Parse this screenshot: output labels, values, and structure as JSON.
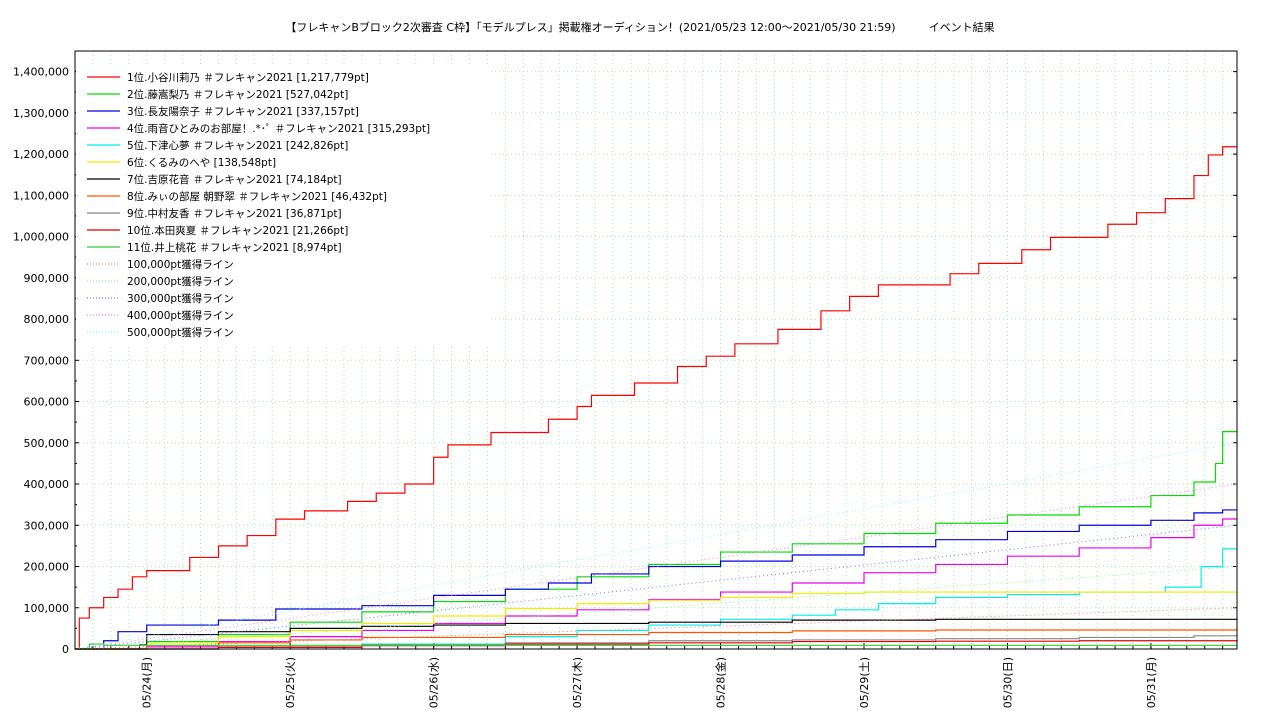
{
  "chart_data": {
    "type": "line",
    "title": "【フレキャンBブロック2次審査 C枠】「モデルプレス」掲載権オーディション！(2021/05/23 12:00〜2021/05/30 21:59)　　　イベント結果",
    "xlabel": "",
    "ylabel": "",
    "x_range": [
      "2021-05-23 12:00",
      "2021-05-31 00:00"
    ],
    "ylim": [
      0,
      1450000
    ],
    "y_ticks": [
      "0",
      "100,000",
      "200,000",
      "300,000",
      "400,000",
      "500,000",
      "600,000",
      "700,000",
      "800,000",
      "900,000",
      "1,000,000",
      "1,100,000",
      "1,200,000",
      "1,300,000",
      "1,400,000"
    ],
    "x_ticks": [
      "05/24(月)",
      "05/25(火)",
      "05/26(水)",
      "05/27(木)",
      "05/28(金)",
      "05/29(土)",
      "05/30(日)",
      "05/31(月)"
    ],
    "grid": true,
    "legend_position": "top-left",
    "series": [
      {
        "name": "1位.小谷川莉乃 ＃フレキャン2021 [1,217,779pt]",
        "color": "#ff0000",
        "style": "solid",
        "points": [
          [
            0,
            0
          ],
          [
            0.03,
            75000
          ],
          [
            0.1,
            100000
          ],
          [
            0.2,
            125000
          ],
          [
            0.3,
            145000
          ],
          [
            0.4,
            175000
          ],
          [
            0.5,
            190000
          ],
          [
            0.8,
            222000
          ],
          [
            1.0,
            250000
          ],
          [
            1.2,
            275000
          ],
          [
            1.4,
            315000
          ],
          [
            1.6,
            335000
          ],
          [
            1.9,
            358000
          ],
          [
            2.1,
            378000
          ],
          [
            2.3,
            400000
          ],
          [
            2.5,
            465000
          ],
          [
            2.6,
            495000
          ],
          [
            2.9,
            525000
          ],
          [
            3.3,
            557000
          ],
          [
            3.5,
            588000
          ],
          [
            3.6,
            615000
          ],
          [
            3.9,
            645000
          ],
          [
            4.2,
            685000
          ],
          [
            4.4,
            710000
          ],
          [
            4.6,
            740000
          ],
          [
            4.9,
            775000
          ],
          [
            5.2,
            820000
          ],
          [
            5.4,
            855000
          ],
          [
            5.6,
            883000
          ],
          [
            6.1,
            910000
          ],
          [
            6.3,
            935000
          ],
          [
            6.6,
            968000
          ],
          [
            6.8,
            998000
          ],
          [
            7.2,
            1030000
          ],
          [
            7.4,
            1058000
          ],
          [
            7.6,
            1092000
          ],
          [
            7.8,
            1148000
          ],
          [
            7.9,
            1198000
          ],
          [
            8.0,
            1217779
          ],
          [
            8.1,
            1217779
          ]
        ]
      },
      {
        "name": "2位.藤嵩梨乃 ＃フレキャン2021 [527,042pt]",
        "color": "#00dd00",
        "style": "solid",
        "points": [
          [
            0,
            0
          ],
          [
            0.5,
            18000
          ],
          [
            1.0,
            35000
          ],
          [
            1.5,
            65000
          ],
          [
            2.0,
            90000
          ],
          [
            2.5,
            115000
          ],
          [
            3.0,
            145000
          ],
          [
            3.5,
            175000
          ],
          [
            4.0,
            205000
          ],
          [
            4.5,
            235000
          ],
          [
            5.0,
            255000
          ],
          [
            5.5,
            280000
          ],
          [
            6.0,
            305000
          ],
          [
            6.5,
            325000
          ],
          [
            7.0,
            345000
          ],
          [
            7.5,
            372000
          ],
          [
            7.8,
            405000
          ],
          [
            7.95,
            450000
          ],
          [
            8.0,
            527042
          ],
          [
            8.1,
            527042
          ]
        ]
      },
      {
        "name": "3位.長友陽奈子 ＃フレキャン2021 [337,157pt]",
        "color": "#0000dd",
        "style": "solid",
        "points": [
          [
            0,
            0
          ],
          [
            0.2,
            20000
          ],
          [
            0.3,
            42000
          ],
          [
            0.5,
            58000
          ],
          [
            1.0,
            70000
          ],
          [
            1.4,
            97000
          ],
          [
            2.0,
            105000
          ],
          [
            2.5,
            130000
          ],
          [
            3.0,
            145000
          ],
          [
            3.3,
            160000
          ],
          [
            3.6,
            182000
          ],
          [
            4.0,
            200000
          ],
          [
            4.5,
            213000
          ],
          [
            5.0,
            228000
          ],
          [
            5.5,
            248000
          ],
          [
            6.0,
            265000
          ],
          [
            6.5,
            285000
          ],
          [
            7.0,
            300000
          ],
          [
            7.5,
            312000
          ],
          [
            7.8,
            330000
          ],
          [
            8.0,
            337157
          ],
          [
            8.1,
            337157
          ]
        ]
      },
      {
        "name": "4位.雨音ひとみのお部屋！.*･ﾟ ＃フレキャン2021 [315,293pt]",
        "color": "#ee00ee",
        "style": "solid",
        "points": [
          [
            0,
            0
          ],
          [
            0.5,
            5000
          ],
          [
            1.0,
            18000
          ],
          [
            1.5,
            30000
          ],
          [
            2.0,
            45000
          ],
          [
            2.5,
            62000
          ],
          [
            3.0,
            80000
          ],
          [
            3.5,
            95000
          ],
          [
            4.0,
            120000
          ],
          [
            4.5,
            138000
          ],
          [
            5.0,
            160000
          ],
          [
            5.5,
            185000
          ],
          [
            6.0,
            205000
          ],
          [
            6.5,
            225000
          ],
          [
            7.0,
            245000
          ],
          [
            7.5,
            270000
          ],
          [
            7.8,
            300000
          ],
          [
            8.0,
            315293
          ],
          [
            8.1,
            315293
          ]
        ]
      },
      {
        "name": "5位.下津心夢 ＃フレキャン2021 [242,826pt]",
        "color": "#00eeee",
        "style": "solid",
        "points": [
          [
            0,
            0
          ],
          [
            1.0,
            5000
          ],
          [
            2.0,
            12000
          ],
          [
            3.0,
            30000
          ],
          [
            3.5,
            45000
          ],
          [
            4.0,
            58000
          ],
          [
            4.5,
            72000
          ],
          [
            5.0,
            82000
          ],
          [
            5.3,
            95000
          ],
          [
            5.6,
            110000
          ],
          [
            6.0,
            125000
          ],
          [
            6.5,
            132000
          ],
          [
            7.0,
            138000
          ],
          [
            7.6,
            150000
          ],
          [
            7.85,
            200000
          ],
          [
            8.0,
            242826
          ],
          [
            8.1,
            242826
          ]
        ]
      },
      {
        "name": "6位.くるみのへや [138,548pt]",
        "color": "#eeee00",
        "style": "solid",
        "points": [
          [
            0,
            0
          ],
          [
            0.5,
            15000
          ],
          [
            1.0,
            30000
          ],
          [
            1.5,
            45000
          ],
          [
            2.0,
            62000
          ],
          [
            2.5,
            80000
          ],
          [
            3.0,
            98000
          ],
          [
            3.5,
            110000
          ],
          [
            4.0,
            118000
          ],
          [
            4.5,
            125000
          ],
          [
            5.0,
            135000
          ],
          [
            5.5,
            138000
          ],
          [
            8.1,
            138548
          ]
        ]
      },
      {
        "name": "7位.吉原花音 ＃フレキャン2021 [74,184pt]",
        "color": "#000000",
        "style": "solid",
        "points": [
          [
            0,
            0
          ],
          [
            0.45,
            10000
          ],
          [
            0.5,
            35000
          ],
          [
            1.0,
            42000
          ],
          [
            1.5,
            50000
          ],
          [
            2.0,
            55000
          ],
          [
            2.5,
            58000
          ],
          [
            3.0,
            62000
          ],
          [
            4.0,
            65000
          ],
          [
            5.0,
            70000
          ],
          [
            6.0,
            72000
          ],
          [
            8.1,
            74184
          ]
        ]
      },
      {
        "name": "8位.みぃの部屋 朝野翠 ＃フレキャン2021 [46,432pt]",
        "color": "#ff5500",
        "style": "solid",
        "points": [
          [
            0,
            0
          ],
          [
            0.5,
            8000
          ],
          [
            1.0,
            15000
          ],
          [
            1.5,
            22000
          ],
          [
            2.0,
            28000
          ],
          [
            3.0,
            35000
          ],
          [
            4.0,
            40000
          ],
          [
            5.0,
            44000
          ],
          [
            6.0,
            46000
          ],
          [
            8.1,
            46432
          ]
        ]
      },
      {
        "name": "9位.中村友香 ＃フレキャン2021 [36,871pt]",
        "color": "#888888",
        "style": "solid",
        "points": [
          [
            0,
            0
          ],
          [
            1.0,
            5000
          ],
          [
            2.0,
            10000
          ],
          [
            3.0,
            15000
          ],
          [
            4.0,
            20000
          ],
          [
            5.0,
            22000
          ],
          [
            6.0,
            25000
          ],
          [
            7.0,
            28000
          ],
          [
            7.8,
            32000
          ],
          [
            8.1,
            36871
          ]
        ]
      },
      {
        "name": "10位.本田爽夏 ＃フレキャン2021 [21,266pt]",
        "color": "#dd0000",
        "style": "solid",
        "points": [
          [
            0,
            0
          ],
          [
            1.0,
            4000
          ],
          [
            2.0,
            8000
          ],
          [
            3.0,
            12000
          ],
          [
            4.0,
            15000
          ],
          [
            5.0,
            18000
          ],
          [
            6.0,
            19000
          ],
          [
            7.0,
            20000
          ],
          [
            8.1,
            21266
          ]
        ]
      },
      {
        "name": "11位.井上桃花 ＃フレキャン2021 [8,974pt]",
        "color": "#33cc33",
        "style": "solid",
        "points": [
          [
            0,
            0
          ],
          [
            0.1,
            12000
          ],
          [
            0.2,
            8974
          ],
          [
            8.1,
            8974
          ]
        ]
      },
      {
        "name": "100,000pt獲得ライン",
        "color": "#ff7777",
        "style": "dotted",
        "points": [
          [
            0,
            0
          ],
          [
            8.1,
            100000
          ]
        ]
      },
      {
        "name": "200,000pt獲得ライン",
        "color": "#77ff77",
        "style": "dotted",
        "points": [
          [
            0,
            0
          ],
          [
            8.1,
            200000
          ]
        ]
      },
      {
        "name": "300,000pt獲得ライン",
        "color": "#7777ff",
        "style": "dotted",
        "points": [
          [
            0,
            0
          ],
          [
            8.1,
            300000
          ]
        ]
      },
      {
        "name": "400,000pt獲得ライン",
        "color": "#ff77ff",
        "style": "dotted",
        "points": [
          [
            0,
            0
          ],
          [
            8.1,
            400000
          ]
        ]
      },
      {
        "name": "500,000pt獲得ライン",
        "color": "#77ffff",
        "style": "dotted",
        "points": [
          [
            0,
            0
          ],
          [
            8.1,
            500000
          ]
        ]
      }
    ]
  }
}
